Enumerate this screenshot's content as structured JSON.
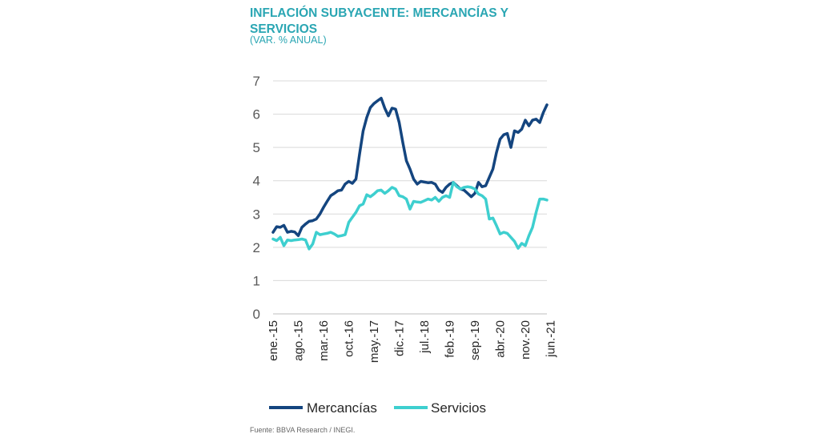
{
  "header": {
    "title": "INFLACIÓN SUBYACENTE: MERCANCÍAS Y SERVICIOS",
    "subtitle": "(VAR. % ANUAL)"
  },
  "footer": {
    "source": "Fuente: BBVA Research / INEGI."
  },
  "chart_data": {
    "type": "line",
    "title": "INFLACIÓN SUBYACENTE: MERCANCÍAS Y SERVICIOS",
    "subtitle": "(VAR. % ANUAL)",
    "xlabel": "",
    "ylabel": "",
    "ylim": [
      0,
      7
    ],
    "yticks": [
      0,
      1,
      2,
      3,
      4,
      5,
      6,
      7
    ],
    "grid": true,
    "legend_position": "bottom",
    "x_tick_labels": [
      "ene.-15",
      "ago.-15",
      "mar.-16",
      "oct.-16",
      "may.-17",
      "dic.-17",
      "jul.-18",
      "feb.-19",
      "sep.-19",
      "abr.-20",
      "nov.-20",
      "jun.-21"
    ],
    "x_tick_step": 7,
    "series": [
      {
        "name": "Mercancías",
        "color": "#14457f",
        "values": [
          2.45,
          2.62,
          2.6,
          2.66,
          2.45,
          2.48,
          2.46,
          2.35,
          2.6,
          2.7,
          2.78,
          2.8,
          2.85,
          3.0,
          3.2,
          3.38,
          3.55,
          3.62,
          3.7,
          3.72,
          3.9,
          3.98,
          3.92,
          4.05,
          4.8,
          5.5,
          5.9,
          6.2,
          6.32,
          6.4,
          6.48,
          6.18,
          5.95,
          6.18,
          6.15,
          5.75,
          5.15,
          4.6,
          4.35,
          4.05,
          3.9,
          3.98,
          3.96,
          3.94,
          3.95,
          3.9,
          3.72,
          3.65,
          3.8,
          3.9,
          3.95,
          3.85,
          3.75,
          3.72,
          3.62,
          3.52,
          3.62,
          3.95,
          3.82,
          3.85,
          4.1,
          4.35,
          4.85,
          5.25,
          5.38,
          5.42,
          5.0,
          5.5,
          5.45,
          5.55,
          5.82,
          5.65,
          5.82,
          5.85,
          5.75,
          6.05,
          6.28
        ]
      },
      {
        "name": "Servicios",
        "color": "#3ecfcf",
        "values": [
          2.25,
          2.2,
          2.3,
          2.05,
          2.22,
          2.2,
          2.22,
          2.23,
          2.25,
          2.22,
          1.95,
          2.1,
          2.45,
          2.38,
          2.4,
          2.42,
          2.45,
          2.4,
          2.33,
          2.35,
          2.38,
          2.75,
          2.9,
          3.05,
          3.25,
          3.3,
          3.58,
          3.52,
          3.6,
          3.7,
          3.72,
          3.62,
          3.7,
          3.8,
          3.75,
          3.55,
          3.52,
          3.45,
          3.15,
          3.38,
          3.36,
          3.35,
          3.4,
          3.45,
          3.42,
          3.5,
          3.38,
          3.5,
          3.55,
          3.5,
          3.95,
          3.82,
          3.75,
          3.8,
          3.82,
          3.8,
          3.75,
          3.6,
          3.55,
          3.45,
          2.85,
          2.88,
          2.65,
          2.4,
          2.45,
          2.42,
          2.3,
          2.18,
          1.97,
          2.12,
          2.05,
          2.35,
          2.6,
          3.05,
          3.45,
          3.45,
          3.42
        ]
      }
    ]
  }
}
